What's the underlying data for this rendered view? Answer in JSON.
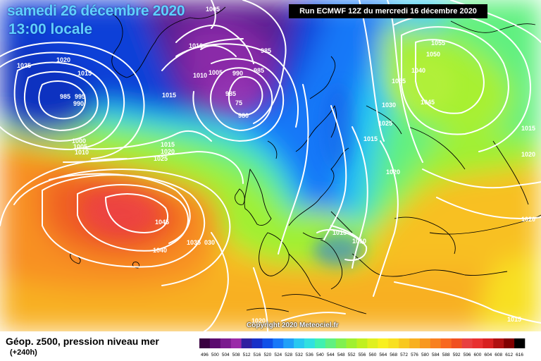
{
  "header": {
    "date": "samedi 26 décembre 2020",
    "time": "13:00 locale",
    "run": "Run ECMWF 12Z du mercredi 16 décembre 2020"
  },
  "copyright": "Copyright 2020 Meteociel.fr",
  "legend": {
    "title": "Géop. z500, pression niveau mer",
    "subtitle": "(+240h)",
    "ticks": [
      "496",
      "500",
      "504",
      "508",
      "512",
      "516",
      "520",
      "524",
      "528",
      "532",
      "536",
      "540",
      "544",
      "548",
      "552",
      "556",
      "560",
      "564",
      "568",
      "572",
      "576",
      "580",
      "584",
      "588",
      "592",
      "596",
      "600",
      "604",
      "608",
      "612",
      "616"
    ],
    "colors": [
      "#3a0040",
      "#5a0a6e",
      "#7a1a8e",
      "#9a2aa8",
      "#3020a0",
      "#1830c8",
      "#1050e8",
      "#1878f8",
      "#20a0f8",
      "#28c8f0",
      "#30e0e0",
      "#40f0b0",
      "#60f080",
      "#80f050",
      "#a0f030",
      "#c0f020",
      "#e0f020",
      "#f8f020",
      "#f8e020",
      "#f8c820",
      "#f8b020",
      "#f89820",
      "#f88020",
      "#f86820",
      "#f05020",
      "#e84040",
      "#e83030",
      "#d82020",
      "#b01010",
      "#800000",
      "#000000"
    ]
  },
  "isobar_labels": [
    {
      "id": "l1",
      "text": "1005"
    },
    {
      "id": "l2",
      "text": "1010"
    },
    {
      "id": "l3",
      "text": "985"
    },
    {
      "id": "l4",
      "text": "985"
    },
    {
      "id": "l5",
      "text": "1010"
    },
    {
      "id": "l6",
      "text": "1005"
    },
    {
      "id": "l7",
      "text": "990"
    },
    {
      "id": "l8",
      "text": "985"
    },
    {
      "id": "l9",
      "text": "75"
    },
    {
      "id": "l10",
      "text": "980"
    },
    {
      "id": "l11",
      "text": "1015"
    },
    {
      "id": "l12",
      "text": "1020"
    },
    {
      "id": "l13",
      "text": "1025"
    },
    {
      "id": "l14",
      "text": "1015"
    },
    {
      "id": "l15",
      "text": "985"
    },
    {
      "id": "l16",
      "text": "995"
    },
    {
      "id": "l17",
      "text": "990"
    },
    {
      "id": "l18",
      "text": "1000"
    },
    {
      "id": "l19",
      "text": "1005"
    },
    {
      "id": "l20",
      "text": "1010"
    },
    {
      "id": "l21",
      "text": "1015"
    },
    {
      "id": "l22",
      "text": "1020"
    },
    {
      "id": "l23",
      "text": "1025"
    },
    {
      "id": "l24",
      "text": "1045"
    },
    {
      "id": "l25",
      "text": "1040"
    },
    {
      "id": "l26",
      "text": "1035"
    },
    {
      "id": "l27",
      "text": "030"
    },
    {
      "id": "l28",
      "text": "1055"
    },
    {
      "id": "l29",
      "text": "1050"
    },
    {
      "id": "l30",
      "text": "1040"
    },
    {
      "id": "l31",
      "text": "1035"
    },
    {
      "id": "l32",
      "text": "1045"
    },
    {
      "id": "l33",
      "text": "1030"
    },
    {
      "id": "l34",
      "text": "1025"
    },
    {
      "id": "l35",
      "text": "1015"
    },
    {
      "id": "l36",
      "text": "1020"
    },
    {
      "id": "l37",
      "text": "1015"
    },
    {
      "id": "l38",
      "text": "1020"
    },
    {
      "id": "l39",
      "text": "1020"
    },
    {
      "id": "l40",
      "text": "1015"
    },
    {
      "id": "l41",
      "text": "1010"
    },
    {
      "id": "l42",
      "text": "1020"
    },
    {
      "id": "l43",
      "text": "1015"
    }
  ]
}
